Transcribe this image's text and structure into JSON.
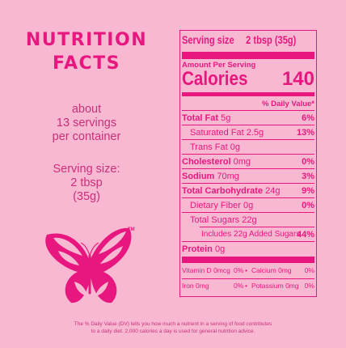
{
  "left": {
    "title_line1": "NUTRITION",
    "title_line2": "FACTS",
    "about_line1": "about",
    "about_line2": "13 servings",
    "about_line3": "per container",
    "serving_line1": "Serving size:",
    "serving_line2": "2 tbsp",
    "serving_line3": "(35g)",
    "trademark": "TM"
  },
  "panel": {
    "serving_label": "Serving size",
    "serving_value": "2 tbsp (35g)",
    "amount_per_serving": "Amount Per Serving",
    "calories_label": "Calories",
    "calories_value": "140",
    "dv_header": "% Daily Value*",
    "rows": [
      {
        "label": "Total Fat",
        "amount": "5g",
        "dv": "6%"
      },
      {
        "label": "Saturated Fat",
        "amount": "2.5g",
        "dv": "13%"
      },
      {
        "label": "Trans Fat",
        "amount": "0g",
        "dv": ""
      },
      {
        "label": "Cholesterol",
        "amount": "0mg",
        "dv": "0%"
      },
      {
        "label": "Sodium",
        "amount": "70mg",
        "dv": "3%"
      },
      {
        "label": "Total Carbohydrate",
        "amount": "24g",
        "dv": "9%"
      },
      {
        "label": "Dietary Fiber",
        "amount": "0g",
        "dv": "0%"
      },
      {
        "label": "Total Sugars",
        "amount": "22g",
        "dv": ""
      },
      {
        "label": "Includes 22g Added Sugars",
        "amount": "",
        "dv": "44%"
      },
      {
        "label": "Protein",
        "amount": "0g",
        "dv": ""
      }
    ],
    "micros": [
      {
        "label": "Vitamin D",
        "amount": "0mcg",
        "dv": "0%"
      },
      {
        "label": "Calcium",
        "amount": "0mg",
        "dv": "0%"
      },
      {
        "label": "Iron",
        "amount": "0mg",
        "dv": "0%"
      },
      {
        "label": "Potassium",
        "amount": "0mg",
        "dv": "0%"
      }
    ]
  },
  "footer": {
    "line1": "The % Daily Value (DV) tells you how much a nutrient in a serving of food contributes",
    "line2": "to a daily diet. 2,000 calories a day is used for general nutrition advice."
  },
  "colors": {
    "background": "#f9b8d2",
    "accent": "#e8177f"
  }
}
